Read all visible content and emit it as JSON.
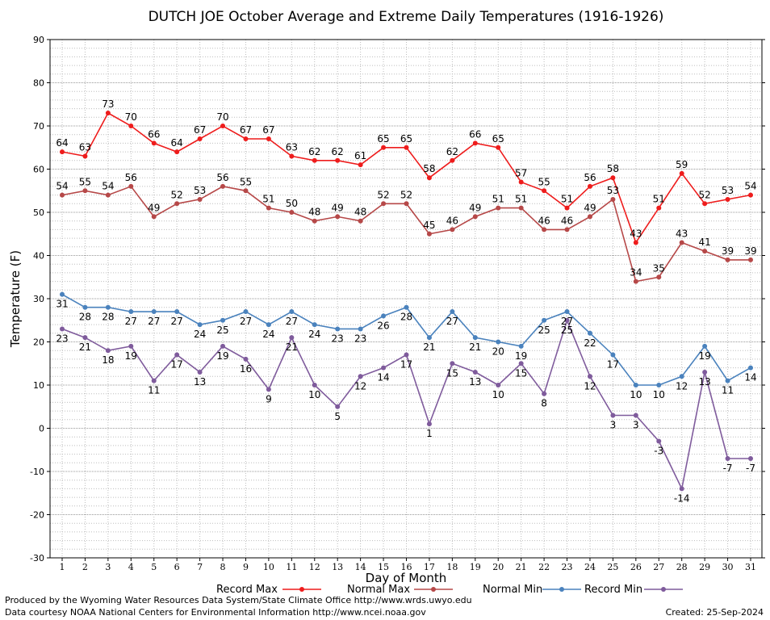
{
  "chart_data": {
    "type": "line",
    "title": "DUTCH JOE October Average and Extreme Daily Temperatures (1916-1926)",
    "xlabel": "Day of Month",
    "ylabel": "Temperature (F)",
    "ylim": [
      -30,
      90
    ],
    "yticks": [
      -30,
      -20,
      -10,
      0,
      10,
      20,
      30,
      40,
      50,
      60,
      70,
      80,
      90
    ],
    "x": [
      1,
      2,
      3,
      4,
      5,
      6,
      7,
      8,
      9,
      10,
      11,
      12,
      13,
      14,
      15,
      16,
      17,
      18,
      19,
      20,
      21,
      22,
      23,
      24,
      25,
      26,
      27,
      28,
      29,
      30,
      31
    ],
    "grid": true,
    "legend_position": "bottom",
    "series": [
      {
        "name": "Record Max",
        "color": "#ee1c1c",
        "label_side": "above",
        "values": [
          64,
          63,
          73,
          70,
          66,
          64,
          67,
          70,
          67,
          67,
          63,
          62,
          62,
          61,
          65,
          65,
          58,
          62,
          66,
          65,
          57,
          55,
          51,
          56,
          58,
          43,
          51,
          59,
          52,
          53,
          54
        ]
      },
      {
        "name": "Normal Max",
        "color": "#b64848",
        "label_side": "above",
        "values": [
          54,
          55,
          54,
          56,
          49,
          52,
          53,
          56,
          55,
          51,
          50,
          48,
          49,
          48,
          52,
          52,
          45,
          46,
          49,
          51,
          51,
          46,
          46,
          49,
          53,
          34,
          35,
          43,
          41,
          39,
          39
        ]
      },
      {
        "name": "Normal Min",
        "color": "#4a82bd",
        "label_side": "below",
        "values": [
          31,
          28,
          28,
          27,
          27,
          27,
          24,
          25,
          27,
          24,
          27,
          24,
          23,
          23,
          26,
          28,
          21,
          27,
          21,
          20,
          19,
          25,
          27,
          22,
          17,
          10,
          10,
          12,
          19,
          11,
          14
        ]
      },
      {
        "name": "Record Min",
        "color": "#7f5b9c",
        "label_side": "below",
        "values": [
          23,
          21,
          18,
          19,
          11,
          17,
          13,
          19,
          16,
          9,
          21,
          10,
          5,
          12,
          14,
          17,
          1,
          15,
          13,
          10,
          15,
          8,
          25,
          12,
          3,
          3,
          -3,
          -14,
          13,
          -7,
          -7
        ]
      }
    ]
  },
  "footer": {
    "produced_by": "Produced by the Wyoming Water Resources Data System/State Climate Office http://www.wrds.uwyo.edu",
    "courtesy": "Data courtesy NOAA National Centers for Environmental Information http://www.ncei.noaa.gov",
    "created": "Created: 25-Sep-2024"
  }
}
